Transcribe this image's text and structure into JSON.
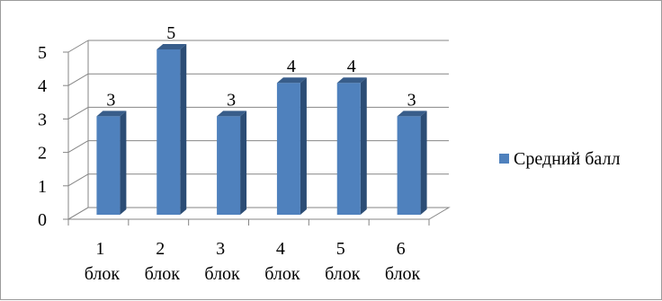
{
  "chart_data": {
    "type": "bar",
    "style": "3d-column",
    "categories": [
      "1 блок",
      "2 блок",
      "3 блок",
      "4 блок",
      "5 блок",
      "6 блок"
    ],
    "category_lines": [
      [
        "1",
        "блок"
      ],
      [
        "2",
        "блок"
      ],
      [
        "3",
        "блок"
      ],
      [
        "4",
        "блок"
      ],
      [
        "5",
        "блок"
      ],
      [
        "6",
        "блок"
      ]
    ],
    "series": [
      {
        "name": "Средний балл",
        "values": [
          3,
          5,
          3,
          4,
          4,
          3
        ],
        "color": "#4f81bd"
      }
    ],
    "data_labels": [
      "3",
      "5",
      "3",
      "4",
      "4",
      "3"
    ],
    "y_ticks": [
      "0",
      "1",
      "2",
      "3",
      "4",
      "5"
    ],
    "ylim": [
      0,
      5
    ],
    "grid": true,
    "legend_position": "right"
  }
}
